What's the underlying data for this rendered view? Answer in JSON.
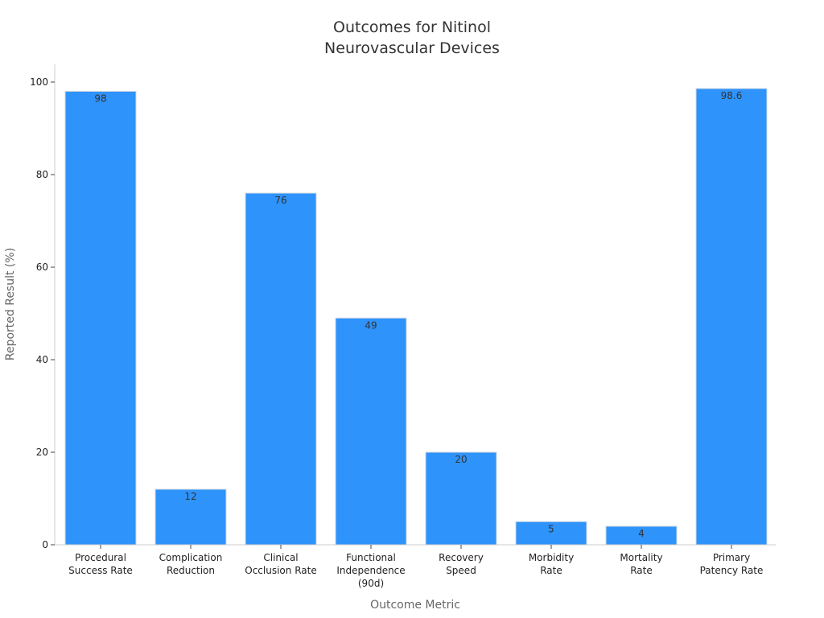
{
  "chart_data": {
    "type": "bar",
    "title": [
      "Outcomes for Nitinol",
      "Neurovascular Devices"
    ],
    "xlabel": "Outcome Metric",
    "ylabel": "Reported Result (%)",
    "ylim": [
      0,
      100
    ],
    "yticks": [
      0,
      20,
      40,
      60,
      80,
      100
    ],
    "grid": false,
    "bar_color": "#2e93fa",
    "bar_edge_color": "#cfd8e3",
    "categories": [
      [
        "Procedural",
        "Success Rate"
      ],
      [
        "Complication",
        "Reduction"
      ],
      [
        "Clinical",
        "Occlusion Rate"
      ],
      [
        "Functional",
        "Independence",
        "(90d)"
      ],
      [
        "Recovery",
        "Speed"
      ],
      [
        "Morbidity",
        "Rate"
      ],
      [
        "Mortality",
        "Rate"
      ],
      [
        "Primary",
        "Patency Rate"
      ]
    ],
    "values": [
      98,
      12,
      76,
      49,
      20,
      5,
      4,
      98.6
    ],
    "value_labels": [
      "98",
      "12",
      "76",
      "49",
      "20",
      "5",
      "4",
      "98.6"
    ]
  }
}
